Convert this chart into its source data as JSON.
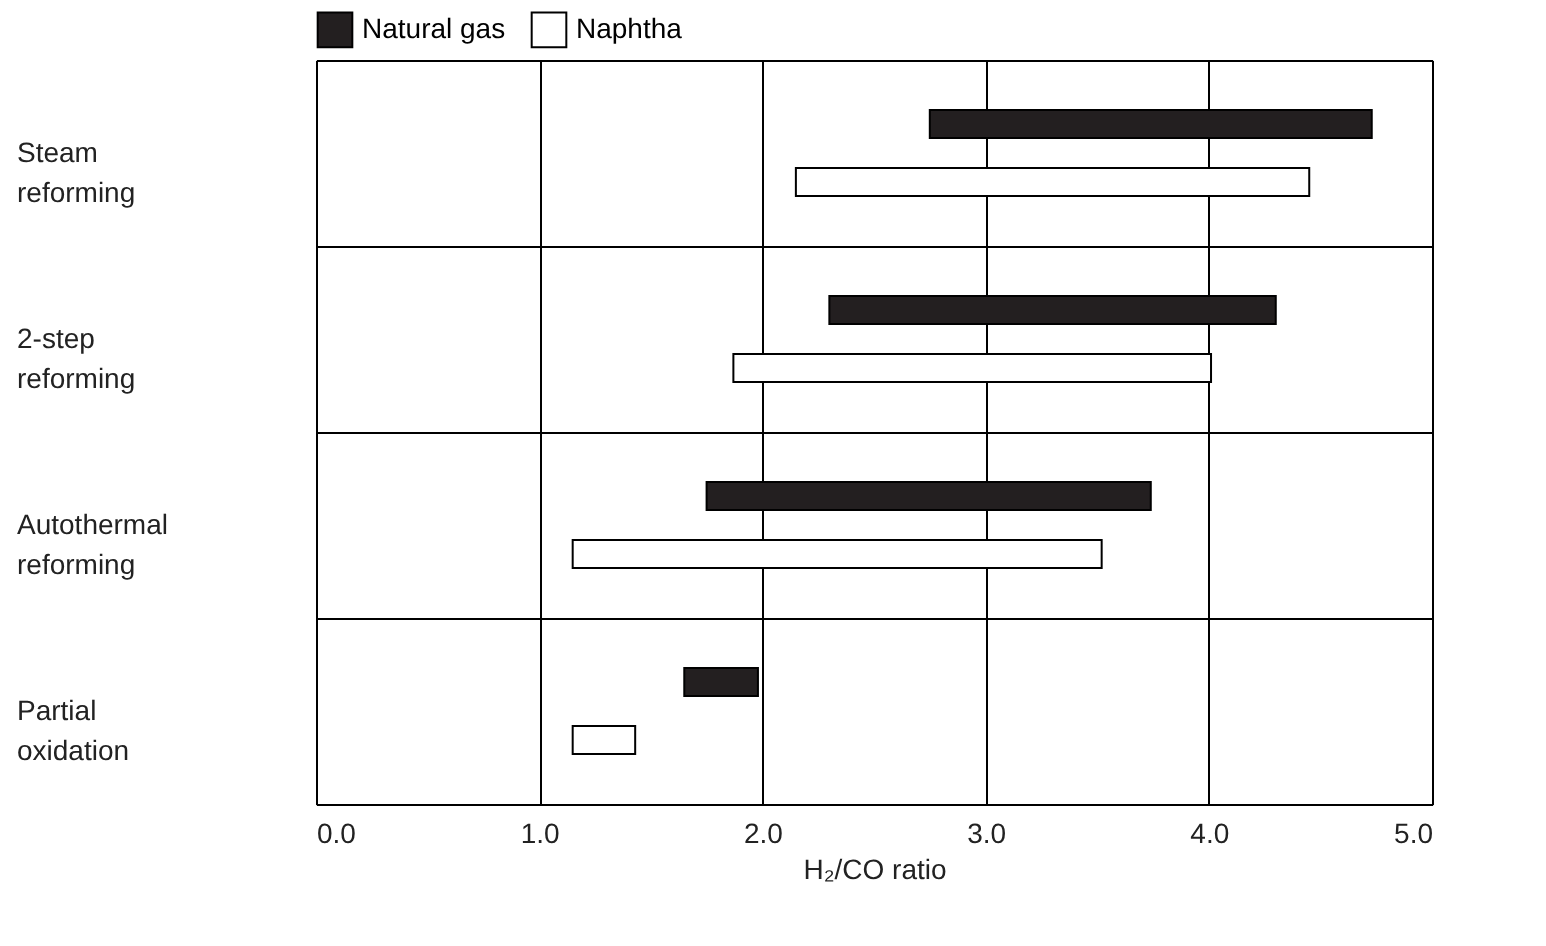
{
  "chart_data": {
    "type": "bar",
    "orientation": "horizontal",
    "xlabel": "H₂/CO ratio",
    "categories": [
      "Steam reforming",
      "2-step reforming",
      "Autothermal reforming",
      "Partial oxidation"
    ],
    "series": [
      {
        "name": "Natural gas",
        "color": "#231f20",
        "base": [
          2.75,
          2.3,
          1.75,
          1.65
        ],
        "values": [
          1.98,
          2.0,
          1.99,
          0.33
        ]
      },
      {
        "name": "Naphtha",
        "color": "#ffffff",
        "base": [
          2.15,
          1.87,
          1.15,
          1.15
        ],
        "values": [
          2.3,
          2.14,
          2.37,
          0.28
        ]
      }
    ],
    "xlim": [
      0,
      5
    ],
    "xticks": [
      {
        "value": 0,
        "label": "0.0"
      },
      {
        "value": 1,
        "label": "1.0"
      },
      {
        "value": 2,
        "label": "2.0"
      },
      {
        "value": 3,
        "label": "3.0"
      },
      {
        "value": 4,
        "label": "4.0"
      },
      {
        "value": 5,
        "label": "5.0"
      }
    ],
    "grid": true,
    "legend": "top"
  }
}
